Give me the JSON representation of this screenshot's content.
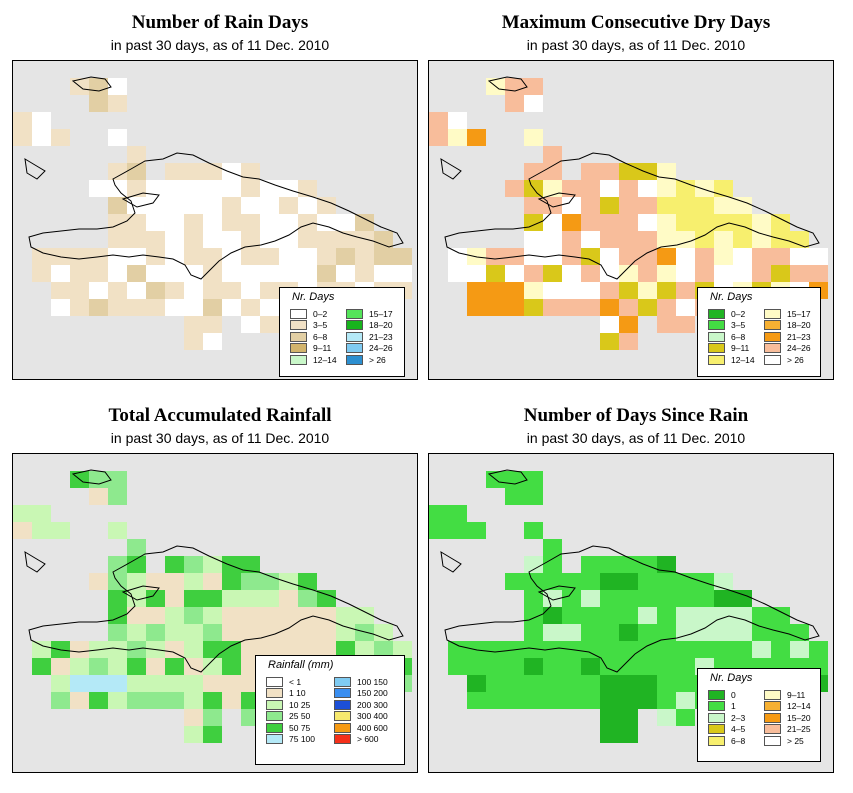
{
  "panels": [
    {
      "id": "rain-days",
      "title": "Number of Rain Days",
      "subtitle": "in past 30 days, as of  11 Dec. 2010",
      "legend_title": "Nr. Days",
      "legend": [
        {
          "label": "0–2",
          "color": "#ffffff"
        },
        {
          "label": "3–5",
          "color": "#f1e1c5"
        },
        {
          "label": "6–8",
          "color": "#e2cfa4"
        },
        {
          "label": "9–11",
          "color": "#d2b46c"
        },
        {
          "label": "12–14",
          "color": "#c9f7c9"
        },
        {
          "label": "15–17",
          "color": "#54e45a"
        },
        {
          "label": "18–20",
          "color": "#17b41d"
        },
        {
          "label": "21–23",
          "color": "#b4e9f7"
        },
        {
          "label": "24–26",
          "color": "#7fcbf2"
        },
        {
          "label": "> 26",
          "color": "#2c8fd0"
        }
      ]
    },
    {
      "id": "dry-days",
      "title": "Maximum Consecutive Dry Days",
      "subtitle": "in past 30 days, as of  11 Dec. 2010",
      "legend_title": "Nr. Days",
      "legend": [
        {
          "label": "0–2",
          "color": "#20b423"
        },
        {
          "label": "3–5",
          "color": "#43dd43"
        },
        {
          "label": "6–8",
          "color": "#c9f7c9"
        },
        {
          "label": "9–11",
          "color": "#d9c81a"
        },
        {
          "label": "12–14",
          "color": "#f7ef6e"
        },
        {
          "label": "15–17",
          "color": "#fffbc6"
        },
        {
          "label": "18–20",
          "color": "#f6b032"
        },
        {
          "label": "21–23",
          "color": "#f59a14"
        },
        {
          "label": "24–26",
          "color": "#f8bd9b"
        },
        {
          "label": "> 26",
          "color": "#ffffff"
        }
      ]
    },
    {
      "id": "rainfall",
      "title": "Total Accumulated Rainfall",
      "subtitle": "in past 30 days, as of  11 Dec. 2010",
      "legend_title": "Rainfall (mm)",
      "legend": [
        {
          "label": "< 1",
          "color": "#ffffff"
        },
        {
          "label": "1    10",
          "color": "#f1e1c5"
        },
        {
          "label": "10    25",
          "color": "#c9f7b4"
        },
        {
          "label": "25    50",
          "color": "#8ee98e"
        },
        {
          "label": "50    75",
          "color": "#3fcf3f"
        },
        {
          "label": "75   100",
          "color": "#b4e9f7"
        },
        {
          "label": "100   150",
          "color": "#7fcbf2"
        },
        {
          "label": "150   200",
          "color": "#3a8ef0"
        },
        {
          "label": "200   300",
          "color": "#1c4fd7"
        },
        {
          "label": "300   400",
          "color": "#f7e96e"
        },
        {
          "label": "400   600",
          "color": "#f59a14"
        },
        {
          "label": "> 600",
          "color": "#f5301a"
        }
      ]
    },
    {
      "id": "since-rain",
      "title": "Number of Days Since Rain",
      "subtitle": "in past 30 days, as of  11 Dec. 2010",
      "legend_title": "Nr. Days",
      "legend": [
        {
          "label": "0",
          "color": "#20b423"
        },
        {
          "label": "1",
          "color": "#43dd43"
        },
        {
          "label": "2–3",
          "color": "#c9f7c9"
        },
        {
          "label": "4–5",
          "color": "#d9c81a"
        },
        {
          "label": "6–8",
          "color": "#f7ef6e"
        },
        {
          "label": "9–11",
          "color": "#fffbc6"
        },
        {
          "label": "12–14",
          "color": "#f6b032"
        },
        {
          "label": "15–20",
          "color": "#f59a14"
        },
        {
          "label": "21–25",
          "color": "#f8bd9b"
        },
        {
          "label": "> 25",
          "color": "#ffffff"
        }
      ]
    }
  ]
}
